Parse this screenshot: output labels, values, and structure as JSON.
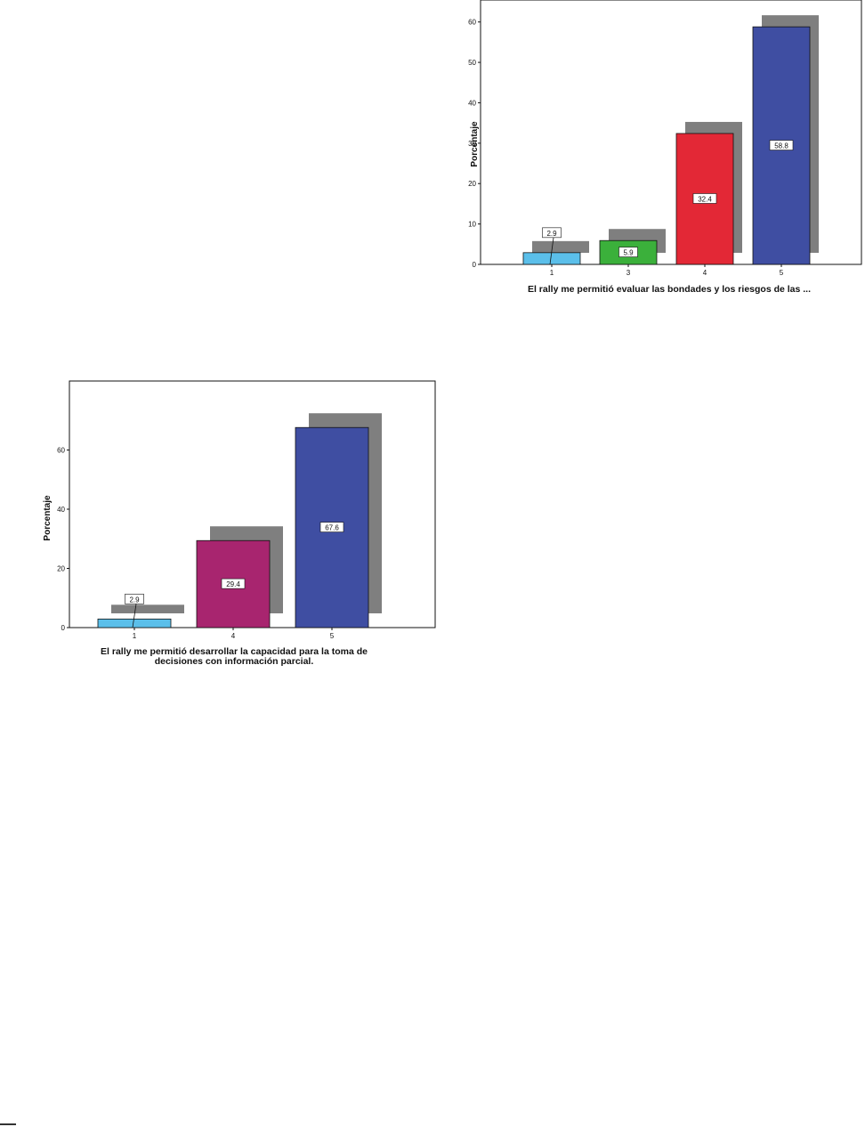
{
  "chart_data": [
    {
      "type": "bar",
      "categories": [
        "1",
        "3",
        "4",
        "5"
      ],
      "values": [
        2.9,
        5.9,
        32.4,
        58.8
      ],
      "value_labels": [
        "2.9",
        "5.9",
        "32.4",
        "58.8"
      ],
      "colors": [
        "#5bbfea",
        "#3bb03b",
        "#e32836",
        "#3f4ea2"
      ],
      "title": "",
      "xlabel": "El rally me permitió evaluar las bondades y los riesgos de las ...",
      "ylabel": "Porcentaje",
      "ylim": [
        0,
        65
      ],
      "yticks": [
        0,
        10,
        20,
        30,
        40,
        50,
        60
      ],
      "grid": false,
      "shadow": true
    },
    {
      "type": "bar",
      "categories": [
        "1",
        "4",
        "5"
      ],
      "values": [
        2.9,
        29.4,
        67.6
      ],
      "value_labels": [
        "2.9",
        "29.4",
        "67.6"
      ],
      "colors": [
        "#5bbfea",
        "#a8256f",
        "#3f4ea2"
      ],
      "title": "",
      "xlabel": "El rally me permitió desarrollar la capacidad para la toma de decisiones con información parcial.",
      "xlabel_lines": [
        "El rally me permitió desarrollar la capacidad para la toma de",
        "decisiones con información parcial."
      ],
      "ylabel": "Porcentaje",
      "ylim": [
        0,
        80
      ],
      "yticks": [
        0,
        20,
        40,
        60
      ],
      "grid": false,
      "shadow": true
    }
  ]
}
